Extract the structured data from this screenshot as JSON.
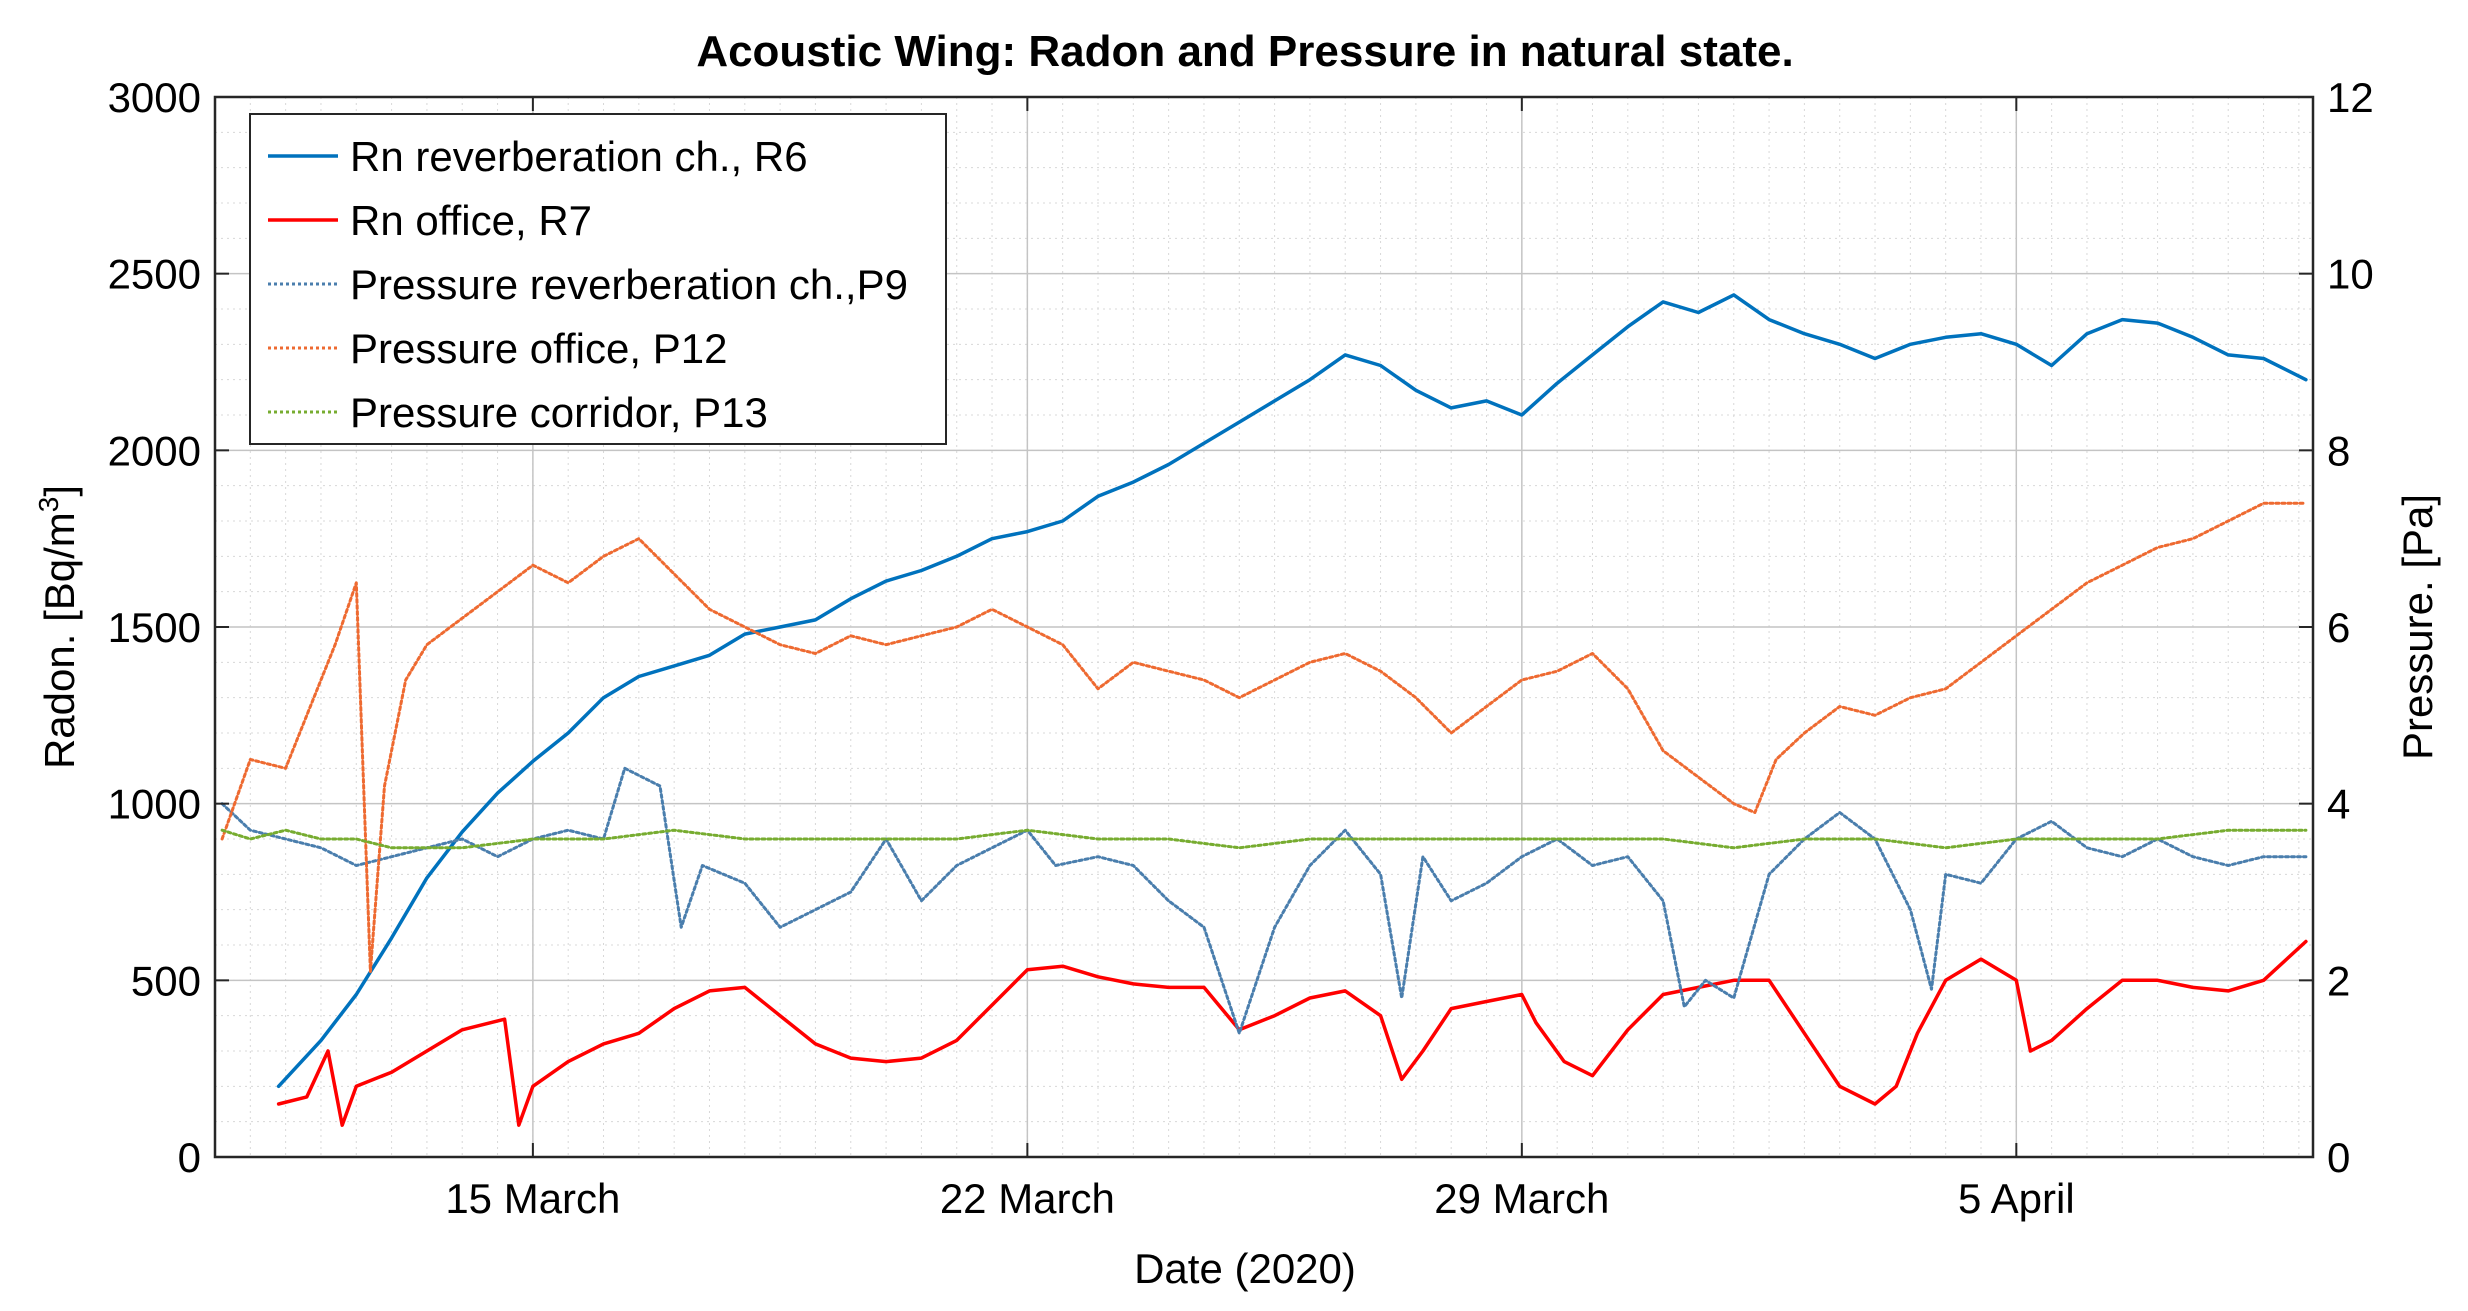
{
  "chart_data": {
    "type": "line",
    "title": "Acoustic Wing: Radon and Pressure in natural state.",
    "xlabel": "Date (2020)",
    "ylabel_left": "Radon. [Bq/m",
    "ylabel_left_sup": "3",
    "ylabel_left_close": "]",
    "ylabel_right": "Pressure. [Pa]",
    "xlim": [
      10.5,
      40.2
    ],
    "x_ticks": [
      {
        "value": 15,
        "label": "15 March"
      },
      {
        "value": 22,
        "label": "22 March"
      },
      {
        "value": 29,
        "label": "29 March"
      },
      {
        "value": 36,
        "label": "5 April"
      }
    ],
    "ylim_left": [
      0,
      3000
    ],
    "y_ticks_left": [
      "0",
      "500",
      "1000",
      "1500",
      "2000",
      "2500",
      "3000"
    ],
    "ylim_right": [
      0,
      12
    ],
    "y_ticks_right": [
      "0",
      "2",
      "4",
      "6",
      "8",
      "10",
      "12"
    ],
    "grid": true,
    "legend_position": "top-left",
    "series": [
      {
        "name": "Rn reverberation ch., R6",
        "axis": "left",
        "color": "#0072BD",
        "style": "solid",
        "points": [
          [
            11.4,
            200
          ],
          [
            12.0,
            330
          ],
          [
            12.5,
            460
          ],
          [
            13.0,
            620
          ],
          [
            13.5,
            790
          ],
          [
            14.0,
            920
          ],
          [
            14.5,
            1030
          ],
          [
            15.0,
            1120
          ],
          [
            15.5,
            1200
          ],
          [
            16.0,
            1300
          ],
          [
            16.5,
            1360
          ],
          [
            17.0,
            1390
          ],
          [
            17.5,
            1420
          ],
          [
            18.0,
            1480
          ],
          [
            18.5,
            1500
          ],
          [
            19.0,
            1520
          ],
          [
            19.5,
            1580
          ],
          [
            20.0,
            1630
          ],
          [
            20.5,
            1660
          ],
          [
            21.0,
            1700
          ],
          [
            21.5,
            1750
          ],
          [
            22.0,
            1770
          ],
          [
            22.5,
            1800
          ],
          [
            23.0,
            1870
          ],
          [
            23.5,
            1910
          ],
          [
            24.0,
            1960
          ],
          [
            24.5,
            2020
          ],
          [
            25.0,
            2080
          ],
          [
            25.5,
            2140
          ],
          [
            26.0,
            2200
          ],
          [
            26.5,
            2270
          ],
          [
            27.0,
            2240
          ],
          [
            27.5,
            2170
          ],
          [
            28.0,
            2120
          ],
          [
            28.5,
            2140
          ],
          [
            29.0,
            2100
          ],
          [
            29.5,
            2190
          ],
          [
            30.0,
            2270
          ],
          [
            30.5,
            2350
          ],
          [
            31.0,
            2420
          ],
          [
            31.5,
            2390
          ],
          [
            32.0,
            2440
          ],
          [
            32.5,
            2370
          ],
          [
            33.0,
            2330
          ],
          [
            33.5,
            2300
          ],
          [
            34.0,
            2260
          ],
          [
            34.5,
            2300
          ],
          [
            35.0,
            2320
          ],
          [
            35.5,
            2330
          ],
          [
            36.0,
            2300
          ],
          [
            36.5,
            2240
          ],
          [
            37.0,
            2330
          ],
          [
            37.5,
            2370
          ],
          [
            38.0,
            2360
          ],
          [
            38.5,
            2320
          ],
          [
            39.0,
            2270
          ],
          [
            39.5,
            2260
          ],
          [
            40.1,
            2200
          ]
        ]
      },
      {
        "name": "Rn office, R7",
        "axis": "left",
        "color": "#FF0000",
        "style": "solid",
        "points": [
          [
            11.4,
            150
          ],
          [
            11.8,
            170
          ],
          [
            12.1,
            300
          ],
          [
            12.3,
            90
          ],
          [
            12.5,
            200
          ],
          [
            13.0,
            240
          ],
          [
            13.5,
            300
          ],
          [
            14.0,
            360
          ],
          [
            14.6,
            390
          ],
          [
            14.8,
            90
          ],
          [
            15.0,
            200
          ],
          [
            15.5,
            270
          ],
          [
            16.0,
            320
          ],
          [
            16.5,
            350
          ],
          [
            17.0,
            420
          ],
          [
            17.5,
            470
          ],
          [
            18.0,
            480
          ],
          [
            18.5,
            400
          ],
          [
            19.0,
            320
          ],
          [
            19.5,
            280
          ],
          [
            20.0,
            270
          ],
          [
            20.5,
            280
          ],
          [
            21.0,
            330
          ],
          [
            21.5,
            430
          ],
          [
            22.0,
            530
          ],
          [
            22.5,
            540
          ],
          [
            23.0,
            510
          ],
          [
            23.5,
            490
          ],
          [
            24.0,
            480
          ],
          [
            24.5,
            480
          ],
          [
            25.0,
            360
          ],
          [
            25.5,
            400
          ],
          [
            26.0,
            450
          ],
          [
            26.5,
            470
          ],
          [
            27.0,
            400
          ],
          [
            27.3,
            220
          ],
          [
            27.6,
            300
          ],
          [
            28.0,
            420
          ],
          [
            28.5,
            440
          ],
          [
            29.0,
            460
          ],
          [
            29.2,
            380
          ],
          [
            29.6,
            270
          ],
          [
            30.0,
            230
          ],
          [
            30.5,
            360
          ],
          [
            31.0,
            460
          ],
          [
            31.5,
            480
          ],
          [
            32.0,
            500
          ],
          [
            32.5,
            500
          ],
          [
            33.0,
            350
          ],
          [
            33.5,
            200
          ],
          [
            34.0,
            150
          ],
          [
            34.3,
            200
          ],
          [
            34.6,
            350
          ],
          [
            35.0,
            500
          ],
          [
            35.5,
            560
          ],
          [
            36.0,
            500
          ],
          [
            36.2,
            300
          ],
          [
            36.5,
            330
          ],
          [
            37.0,
            420
          ],
          [
            37.5,
            500
          ],
          [
            38.0,
            500
          ],
          [
            38.5,
            480
          ],
          [
            39.0,
            470
          ],
          [
            39.5,
            500
          ],
          [
            40.1,
            610
          ]
        ]
      },
      {
        "name": "Pressure reverberation ch.,P9",
        "axis": "right",
        "color": "#4A7EAD",
        "style": "dotted",
        "points": [
          [
            10.6,
            4.0
          ],
          [
            11.0,
            3.7
          ],
          [
            11.5,
            3.6
          ],
          [
            12.0,
            3.5
          ],
          [
            12.5,
            3.3
          ],
          [
            13.0,
            3.4
          ],
          [
            13.5,
            3.5
          ],
          [
            14.0,
            3.6
          ],
          [
            14.5,
            3.4
          ],
          [
            15.0,
            3.6
          ],
          [
            15.5,
            3.7
          ],
          [
            16.0,
            3.6
          ],
          [
            16.3,
            4.4
          ],
          [
            16.8,
            4.2
          ],
          [
            17.1,
            2.6
          ],
          [
            17.4,
            3.3
          ],
          [
            18.0,
            3.1
          ],
          [
            18.5,
            2.6
          ],
          [
            19.0,
            2.8
          ],
          [
            19.5,
            3.0
          ],
          [
            20.0,
            3.6
          ],
          [
            20.5,
            2.9
          ],
          [
            21.0,
            3.3
          ],
          [
            21.5,
            3.5
          ],
          [
            22.0,
            3.7
          ],
          [
            22.4,
            3.3
          ],
          [
            23.0,
            3.4
          ],
          [
            23.5,
            3.3
          ],
          [
            24.0,
            2.9
          ],
          [
            24.5,
            2.6
          ],
          [
            25.0,
            1.4
          ],
          [
            25.5,
            2.6
          ],
          [
            26.0,
            3.3
          ],
          [
            26.5,
            3.7
          ],
          [
            27.0,
            3.2
          ],
          [
            27.3,
            1.8
          ],
          [
            27.6,
            3.4
          ],
          [
            28.0,
            2.9
          ],
          [
            28.5,
            3.1
          ],
          [
            29.0,
            3.4
          ],
          [
            29.5,
            3.6
          ],
          [
            30.0,
            3.3
          ],
          [
            30.5,
            3.4
          ],
          [
            31.0,
            2.9
          ],
          [
            31.3,
            1.7
          ],
          [
            31.6,
            2.0
          ],
          [
            32.0,
            1.8
          ],
          [
            32.5,
            3.2
          ],
          [
            33.0,
            3.6
          ],
          [
            33.5,
            3.9
          ],
          [
            34.0,
            3.6
          ],
          [
            34.5,
            2.8
          ],
          [
            34.8,
            1.9
          ],
          [
            35.0,
            3.2
          ],
          [
            35.5,
            3.1
          ],
          [
            36.0,
            3.6
          ],
          [
            36.5,
            3.8
          ],
          [
            37.0,
            3.5
          ],
          [
            37.5,
            3.4
          ],
          [
            38.0,
            3.6
          ],
          [
            38.5,
            3.4
          ],
          [
            39.0,
            3.3
          ],
          [
            39.5,
            3.4
          ],
          [
            40.1,
            3.4
          ]
        ]
      },
      {
        "name": "Pressure office, P12",
        "axis": "right",
        "color": "#EE6A31",
        "style": "dotted",
        "points": [
          [
            10.6,
            3.6
          ],
          [
            11.0,
            4.5
          ],
          [
            11.5,
            4.4
          ],
          [
            11.8,
            5.0
          ],
          [
            12.2,
            5.8
          ],
          [
            12.5,
            6.5
          ],
          [
            12.6,
            4.3
          ],
          [
            12.7,
            2.1
          ],
          [
            12.9,
            4.2
          ],
          [
            13.2,
            5.4
          ],
          [
            13.5,
            5.8
          ],
          [
            14.0,
            6.1
          ],
          [
            14.5,
            6.4
          ],
          [
            15.0,
            6.7
          ],
          [
            15.5,
            6.5
          ],
          [
            16.0,
            6.8
          ],
          [
            16.5,
            7.0
          ],
          [
            17.0,
            6.6
          ],
          [
            17.5,
            6.2
          ],
          [
            18.0,
            6.0
          ],
          [
            18.5,
            5.8
          ],
          [
            19.0,
            5.7
          ],
          [
            19.5,
            5.9
          ],
          [
            20.0,
            5.8
          ],
          [
            20.5,
            5.9
          ],
          [
            21.0,
            6.0
          ],
          [
            21.5,
            6.2
          ],
          [
            22.0,
            6.0
          ],
          [
            22.5,
            5.8
          ],
          [
            23.0,
            5.3
          ],
          [
            23.5,
            5.6
          ],
          [
            24.0,
            5.5
          ],
          [
            24.5,
            5.4
          ],
          [
            25.0,
            5.2
          ],
          [
            25.5,
            5.4
          ],
          [
            26.0,
            5.6
          ],
          [
            26.5,
            5.7
          ],
          [
            27.0,
            5.5
          ],
          [
            27.5,
            5.2
          ],
          [
            28.0,
            4.8
          ],
          [
            28.5,
            5.1
          ],
          [
            29.0,
            5.4
          ],
          [
            29.5,
            5.5
          ],
          [
            30.0,
            5.7
          ],
          [
            30.5,
            5.3
          ],
          [
            31.0,
            4.6
          ],
          [
            31.5,
            4.3
          ],
          [
            32.0,
            4.0
          ],
          [
            32.3,
            3.9
          ],
          [
            32.6,
            4.5
          ],
          [
            33.0,
            4.8
          ],
          [
            33.5,
            5.1
          ],
          [
            34.0,
            5.0
          ],
          [
            34.5,
            5.2
          ],
          [
            35.0,
            5.3
          ],
          [
            35.5,
            5.6
          ],
          [
            36.0,
            5.9
          ],
          [
            36.5,
            6.2
          ],
          [
            37.0,
            6.5
          ],
          [
            37.5,
            6.7
          ],
          [
            38.0,
            6.9
          ],
          [
            38.5,
            7.0
          ],
          [
            39.0,
            7.2
          ],
          [
            39.5,
            7.4
          ],
          [
            40.1,
            7.4
          ]
        ]
      },
      {
        "name": "Pressure corridor, P13",
        "axis": "right",
        "color": "#77AC30",
        "style": "dotted",
        "points": [
          [
            10.6,
            3.7
          ],
          [
            11.0,
            3.6
          ],
          [
            11.5,
            3.7
          ],
          [
            12.0,
            3.6
          ],
          [
            12.5,
            3.6
          ],
          [
            13.0,
            3.5
          ],
          [
            14.0,
            3.5
          ],
          [
            15.0,
            3.6
          ],
          [
            16.0,
            3.6
          ],
          [
            17.0,
            3.7
          ],
          [
            18.0,
            3.6
          ],
          [
            19.0,
            3.6
          ],
          [
            20.0,
            3.6
          ],
          [
            21.0,
            3.6
          ],
          [
            22.0,
            3.7
          ],
          [
            23.0,
            3.6
          ],
          [
            24.0,
            3.6
          ],
          [
            25.0,
            3.5
          ],
          [
            26.0,
            3.6
          ],
          [
            27.0,
            3.6
          ],
          [
            28.0,
            3.6
          ],
          [
            29.0,
            3.6
          ],
          [
            30.0,
            3.6
          ],
          [
            31.0,
            3.6
          ],
          [
            32.0,
            3.5
          ],
          [
            33.0,
            3.6
          ],
          [
            34.0,
            3.6
          ],
          [
            35.0,
            3.5
          ],
          [
            36.0,
            3.6
          ],
          [
            37.0,
            3.6
          ],
          [
            38.0,
            3.6
          ],
          [
            39.0,
            3.7
          ],
          [
            40.1,
            3.7
          ]
        ]
      }
    ]
  }
}
